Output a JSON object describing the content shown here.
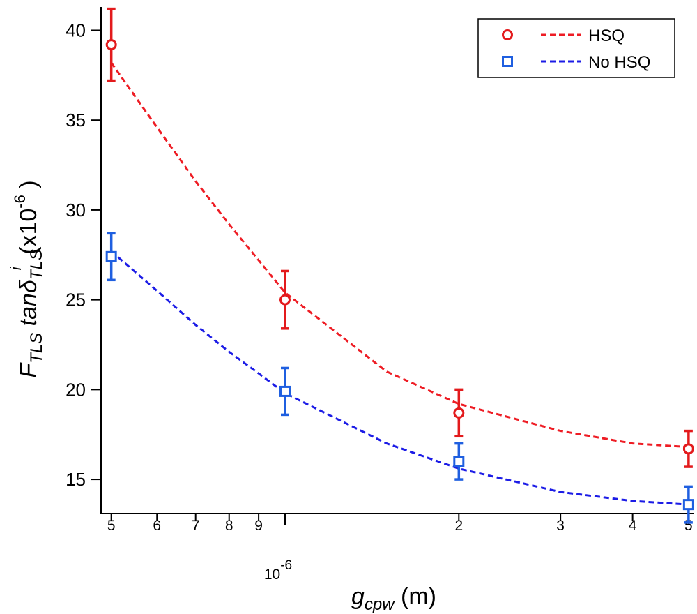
{
  "chart_data": {
    "type": "scatter",
    "xlog": true,
    "x": [
      5e-07,
      1e-06,
      2e-06,
      5e-06
    ],
    "fit_x": [
      5e-07,
      6e-07,
      7e-07,
      8e-07,
      9e-07,
      1e-06,
      1.5e-06,
      2e-06,
      3e-06,
      4e-06,
      5e-06
    ],
    "series": [
      {
        "name": "HSQ",
        "color": "#e31a1c",
        "fit_color": "#ee1c24",
        "marker": "circle",
        "values": [
          39.2,
          25.0,
          18.7,
          16.7
        ],
        "errors": [
          2.0,
          1.6,
          1.3,
          1.0
        ],
        "fit": [
          38.2,
          34.6,
          31.6,
          29.2,
          27.2,
          25.4,
          21.0,
          19.2,
          17.7,
          17.0,
          16.8
        ]
      },
      {
        "name": "No HSQ",
        "color": "#1f5fe0",
        "fit_color": "#1c1ce6",
        "marker": "square",
        "values": [
          27.4,
          19.9,
          16.0,
          13.6
        ],
        "errors": [
          1.3,
          1.3,
          1.0,
          1.0
        ],
        "fit": [
          27.7,
          25.5,
          23.6,
          22.1,
          20.9,
          19.8,
          17.0,
          15.6,
          14.3,
          13.8,
          13.6
        ]
      }
    ],
    "xlim": [
      4.8e-07,
      5.1e-06
    ],
    "ylim": [
      13.1,
      41.3
    ],
    "yticks": [
      15,
      20,
      25,
      30,
      35,
      40
    ],
    "xticks": [
      {
        "value": 5e-07,
        "label": "5"
      },
      {
        "value": 6e-07,
        "label": "6"
      },
      {
        "value": 7e-07,
        "label": "7"
      },
      {
        "value": 8e-07,
        "label": "8"
      },
      {
        "value": 9e-07,
        "label": "9"
      },
      {
        "value": 1e-06,
        "label": "10",
        "exponent": "-6"
      },
      {
        "value": 2e-06,
        "label": "2"
      },
      {
        "value": 3e-06,
        "label": "3"
      },
      {
        "value": 4e-06,
        "label": "4"
      },
      {
        "value": 5e-06,
        "label": "5"
      }
    ],
    "xlabel": [
      "g",
      "cpw",
      " (m)"
    ],
    "ylabel": [
      "F",
      "TLS",
      " tanδ",
      "TLS",
      "i",
      " (x10",
      "-6",
      " )"
    ],
    "legend": "upper right"
  }
}
